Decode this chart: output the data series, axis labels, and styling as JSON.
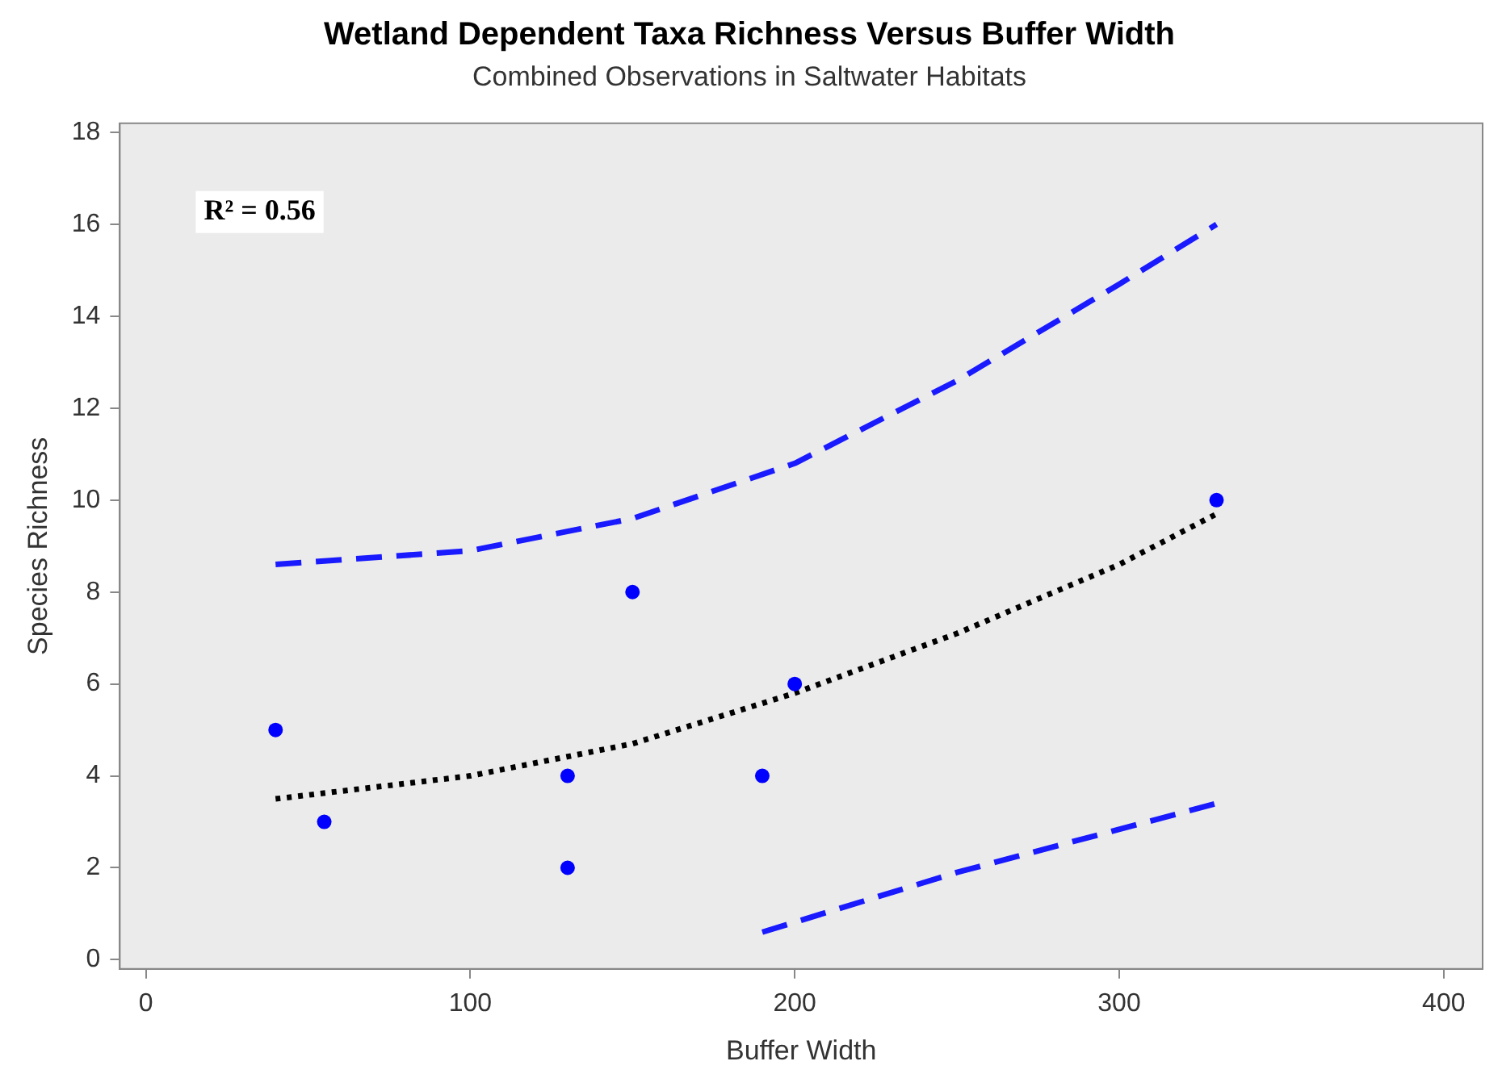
{
  "chart_data": {
    "type": "scatter",
    "title": "Wetland Dependent Taxa Richness Versus Buffer Width",
    "subtitle": "Combined Observations in Saltwater Habitats",
    "xlabel": "Buffer Width",
    "ylabel": "Species Richness",
    "xlim": [
      -8,
      412
    ],
    "xticks": [
      0,
      100,
      200,
      300,
      400
    ],
    "ylim": [
      -0.2,
      18.2
    ],
    "yticks": [
      0,
      2,
      4,
      6,
      8,
      10,
      12,
      14,
      16,
      18
    ],
    "annotations": [
      "R² = 0.56"
    ],
    "legend": false,
    "grid": false,
    "series": [
      {
        "color": "#0000ff",
        "marker": "circle",
        "x": [
          40,
          55,
          130,
          130,
          150,
          190,
          200,
          330
        ],
        "values": [
          5,
          3,
          4,
          2,
          8,
          4,
          6,
          10
        ]
      },
      {
        "type": "line",
        "color": "#000000",
        "marker": "none",
        "line_style": "dotted",
        "x": [
          40,
          100,
          150,
          200,
          250,
          300,
          330
        ],
        "values": [
          3.5,
          4.0,
          4.7,
          5.8,
          7.1,
          8.6,
          9.7
        ]
      },
      {
        "type": "line",
        "color": "#1a1aff",
        "marker": "none",
        "line_style": "dashed",
        "x": [
          40,
          100,
          150,
          200,
          250,
          300,
          330
        ],
        "values": [
          8.6,
          8.9,
          9.6,
          10.8,
          12.6,
          14.7,
          16.0
        ]
      },
      {
        "type": "line",
        "color": "#1a1aff",
        "marker": "none",
        "line_style": "dashed",
        "x": [
          190,
          250,
          330
        ],
        "values": [
          0.6,
          1.9,
          3.4
        ]
      }
    ]
  }
}
